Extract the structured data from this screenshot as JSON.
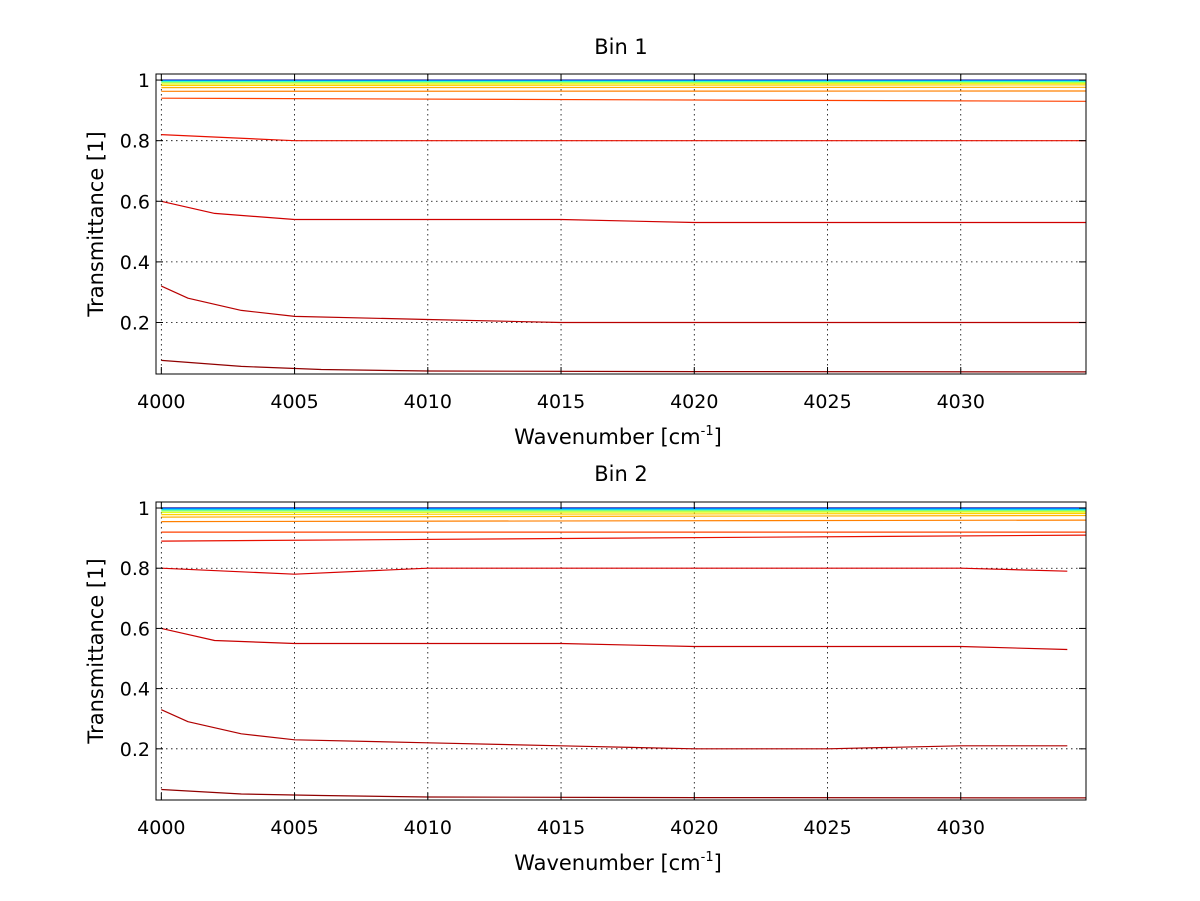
{
  "chart_data": [
    {
      "type": "line",
      "title": "Bin 1",
      "xlabel": "Wavenumber [cm",
      "xlabel_sup": "-1",
      "xlabel_end": "]",
      "ylabel": "Transmittance [1]",
      "xlim": [
        3999.8,
        4034.7
      ],
      "ylim": [
        0.03,
        1.02
      ],
      "xticks": [
        4000,
        4005,
        4010,
        4015,
        4020,
        4025,
        4030
      ],
      "xtick_labels": [
        "4000",
        "4005",
        "4010",
        "4015",
        "4020",
        "4025",
        "4030"
      ],
      "yticks": [
        0.2,
        0.4,
        0.6,
        0.8,
        1
      ],
      "ytick_labels": [
        "0.2",
        "0.4",
        "0.6",
        "0.8",
        "1"
      ],
      "grid": true,
      "series": [
        {
          "color": "#00008f",
          "values": [
            [
              4000,
              1.0
            ],
            [
              4034.7,
              1.0
            ]
          ]
        },
        {
          "color": "#0060ff",
          "values": [
            [
              4000,
              0.998
            ],
            [
              4034.7,
              0.998
            ]
          ]
        },
        {
          "color": "#00b0ff",
          "values": [
            [
              4000,
              0.997
            ],
            [
              4034.7,
              0.997
            ]
          ]
        },
        {
          "color": "#30ffd0",
          "values": [
            [
              4000,
              0.995
            ],
            [
              4034.7,
              0.995
            ]
          ]
        },
        {
          "color": "#9fff60",
          "values": [
            [
              4000,
              0.992
            ],
            [
              4034.7,
              0.992
            ]
          ]
        },
        {
          "color": "#e0ff20",
          "values": [
            [
              4000,
              0.987
            ],
            [
              4034.7,
              0.989
            ]
          ]
        },
        {
          "color": "#ffd000",
          "values": [
            [
              4000,
              0.982
            ],
            [
              4034.7,
              0.984
            ]
          ]
        },
        {
          "color": "#ffb000",
          "values": [
            [
              4000,
              0.975
            ],
            [
              4034.7,
              0.976
            ]
          ]
        },
        {
          "color": "#ff8000",
          "values": [
            [
              4000,
              0.963
            ],
            [
              4034.7,
              0.964
            ]
          ]
        },
        {
          "color": "#ff4000",
          "values": [
            [
              4000,
              0.94
            ],
            [
              4034.7,
              0.93
            ]
          ]
        },
        {
          "color": "#e81000",
          "values": [
            [
              4000,
              0.82
            ],
            [
              4005,
              0.8
            ],
            [
              4010,
              0.8
            ],
            [
              4015,
              0.8
            ],
            [
              4020,
              0.8
            ],
            [
              4025,
              0.8
            ],
            [
              4030,
              0.8
            ],
            [
              4034.7,
              0.8
            ]
          ]
        },
        {
          "color": "#d00000",
          "values": [
            [
              4000,
              0.6
            ],
            [
              4002,
              0.56
            ],
            [
              4005,
              0.54
            ],
            [
              4010,
              0.54
            ],
            [
              4015,
              0.54
            ],
            [
              4020,
              0.53
            ],
            [
              4025,
              0.53
            ],
            [
              4030,
              0.53
            ],
            [
              4034.7,
              0.53
            ]
          ]
        },
        {
          "color": "#b80000",
          "values": [
            [
              4000,
              0.32
            ],
            [
              4001,
              0.28
            ],
            [
              4003,
              0.24
            ],
            [
              4005,
              0.22
            ],
            [
              4010,
              0.21
            ],
            [
              4015,
              0.2
            ],
            [
              4020,
              0.2
            ],
            [
              4025,
              0.2
            ],
            [
              4030,
              0.2
            ],
            [
              4034.7,
              0.2
            ]
          ]
        },
        {
          "color": "#900000",
          "values": [
            [
              4000,
              0.075
            ],
            [
              4003,
              0.055
            ],
            [
              4006,
              0.045
            ],
            [
              4010,
              0.04
            ],
            [
              4020,
              0.038
            ],
            [
              4034.7,
              0.037
            ]
          ]
        }
      ]
    },
    {
      "type": "line",
      "title": "Bin 2",
      "xlabel": "Wavenumber [cm",
      "xlabel_sup": "-1",
      "xlabel_end": "]",
      "ylabel": "Transmittance [1]",
      "xlim": [
        3999.8,
        4034.7
      ],
      "ylim": [
        0.03,
        1.02
      ],
      "xticks": [
        4000,
        4005,
        4010,
        4015,
        4020,
        4025,
        4030
      ],
      "xtick_labels": [
        "4000",
        "4005",
        "4010",
        "4015",
        "4020",
        "4025",
        "4030"
      ],
      "yticks": [
        0.2,
        0.4,
        0.6,
        0.8,
        1
      ],
      "ytick_labels": [
        "0.2",
        "0.4",
        "0.6",
        "0.8",
        "1"
      ],
      "grid": true,
      "series": [
        {
          "color": "#00008f",
          "values": [
            [
              4000,
              1.0
            ],
            [
              4034.7,
              1.0
            ]
          ]
        },
        {
          "color": "#0060ff",
          "values": [
            [
              4000,
              0.998
            ],
            [
              4034.7,
              0.998
            ]
          ]
        },
        {
          "color": "#00b0ff",
          "values": [
            [
              4000,
              0.996
            ],
            [
              4034.7,
              0.996
            ]
          ]
        },
        {
          "color": "#30ffd0",
          "values": [
            [
              4000,
              0.993
            ],
            [
              4034.7,
              0.993
            ]
          ]
        },
        {
          "color": "#9fff60",
          "values": [
            [
              4000,
              0.99
            ],
            [
              4034.7,
              0.99
            ]
          ]
        },
        {
          "color": "#e0ff20",
          "values": [
            [
              4000,
              0.985
            ],
            [
              4034.7,
              0.987
            ]
          ]
        },
        {
          "color": "#ffd000",
          "values": [
            [
              4000,
              0.978
            ],
            [
              4034.7,
              0.982
            ]
          ]
        },
        {
          "color": "#ffb000",
          "values": [
            [
              4000,
              0.97
            ],
            [
              4034.7,
              0.975
            ]
          ]
        },
        {
          "color": "#ff8000",
          "values": [
            [
              4000,
              0.955
            ],
            [
              4034.7,
              0.96
            ]
          ]
        },
        {
          "color": "#ff4000",
          "values": [
            [
              4000,
              0.92
            ],
            [
              4034.7,
              0.92
            ]
          ]
        },
        {
          "color": "#e81000",
          "values": [
            [
              4000,
              0.89
            ],
            [
              4034.7,
              0.91
            ]
          ]
        },
        {
          "color": "#d80000",
          "values": [
            [
              4000,
              0.8
            ],
            [
              4005,
              0.78
            ],
            [
              4010,
              0.8
            ],
            [
              4015,
              0.8
            ],
            [
              4020,
              0.8
            ],
            [
              4025,
              0.8
            ],
            [
              4030,
              0.8
            ],
            [
              4034,
              0.79
            ]
          ]
        },
        {
          "color": "#c80000",
          "values": [
            [
              4000,
              0.6
            ],
            [
              4002,
              0.56
            ],
            [
              4005,
              0.55
            ],
            [
              4010,
              0.55
            ],
            [
              4015,
              0.55
            ],
            [
              4020,
              0.54
            ],
            [
              4025,
              0.54
            ],
            [
              4030,
              0.54
            ],
            [
              4034,
              0.53
            ]
          ]
        },
        {
          "color": "#b00000",
          "values": [
            [
              4000,
              0.33
            ],
            [
              4001,
              0.29
            ],
            [
              4003,
              0.25
            ],
            [
              4005,
              0.23
            ],
            [
              4010,
              0.22
            ],
            [
              4015,
              0.21
            ],
            [
              4020,
              0.2
            ],
            [
              4025,
              0.2
            ],
            [
              4030,
              0.21
            ],
            [
              4034,
              0.21
            ]
          ]
        },
        {
          "color": "#900000",
          "values": [
            [
              4000,
              0.065
            ],
            [
              4003,
              0.05
            ],
            [
              4006,
              0.045
            ],
            [
              4010,
              0.04
            ],
            [
              4020,
              0.038
            ],
            [
              4034.7,
              0.037
            ]
          ]
        }
      ]
    }
  ]
}
